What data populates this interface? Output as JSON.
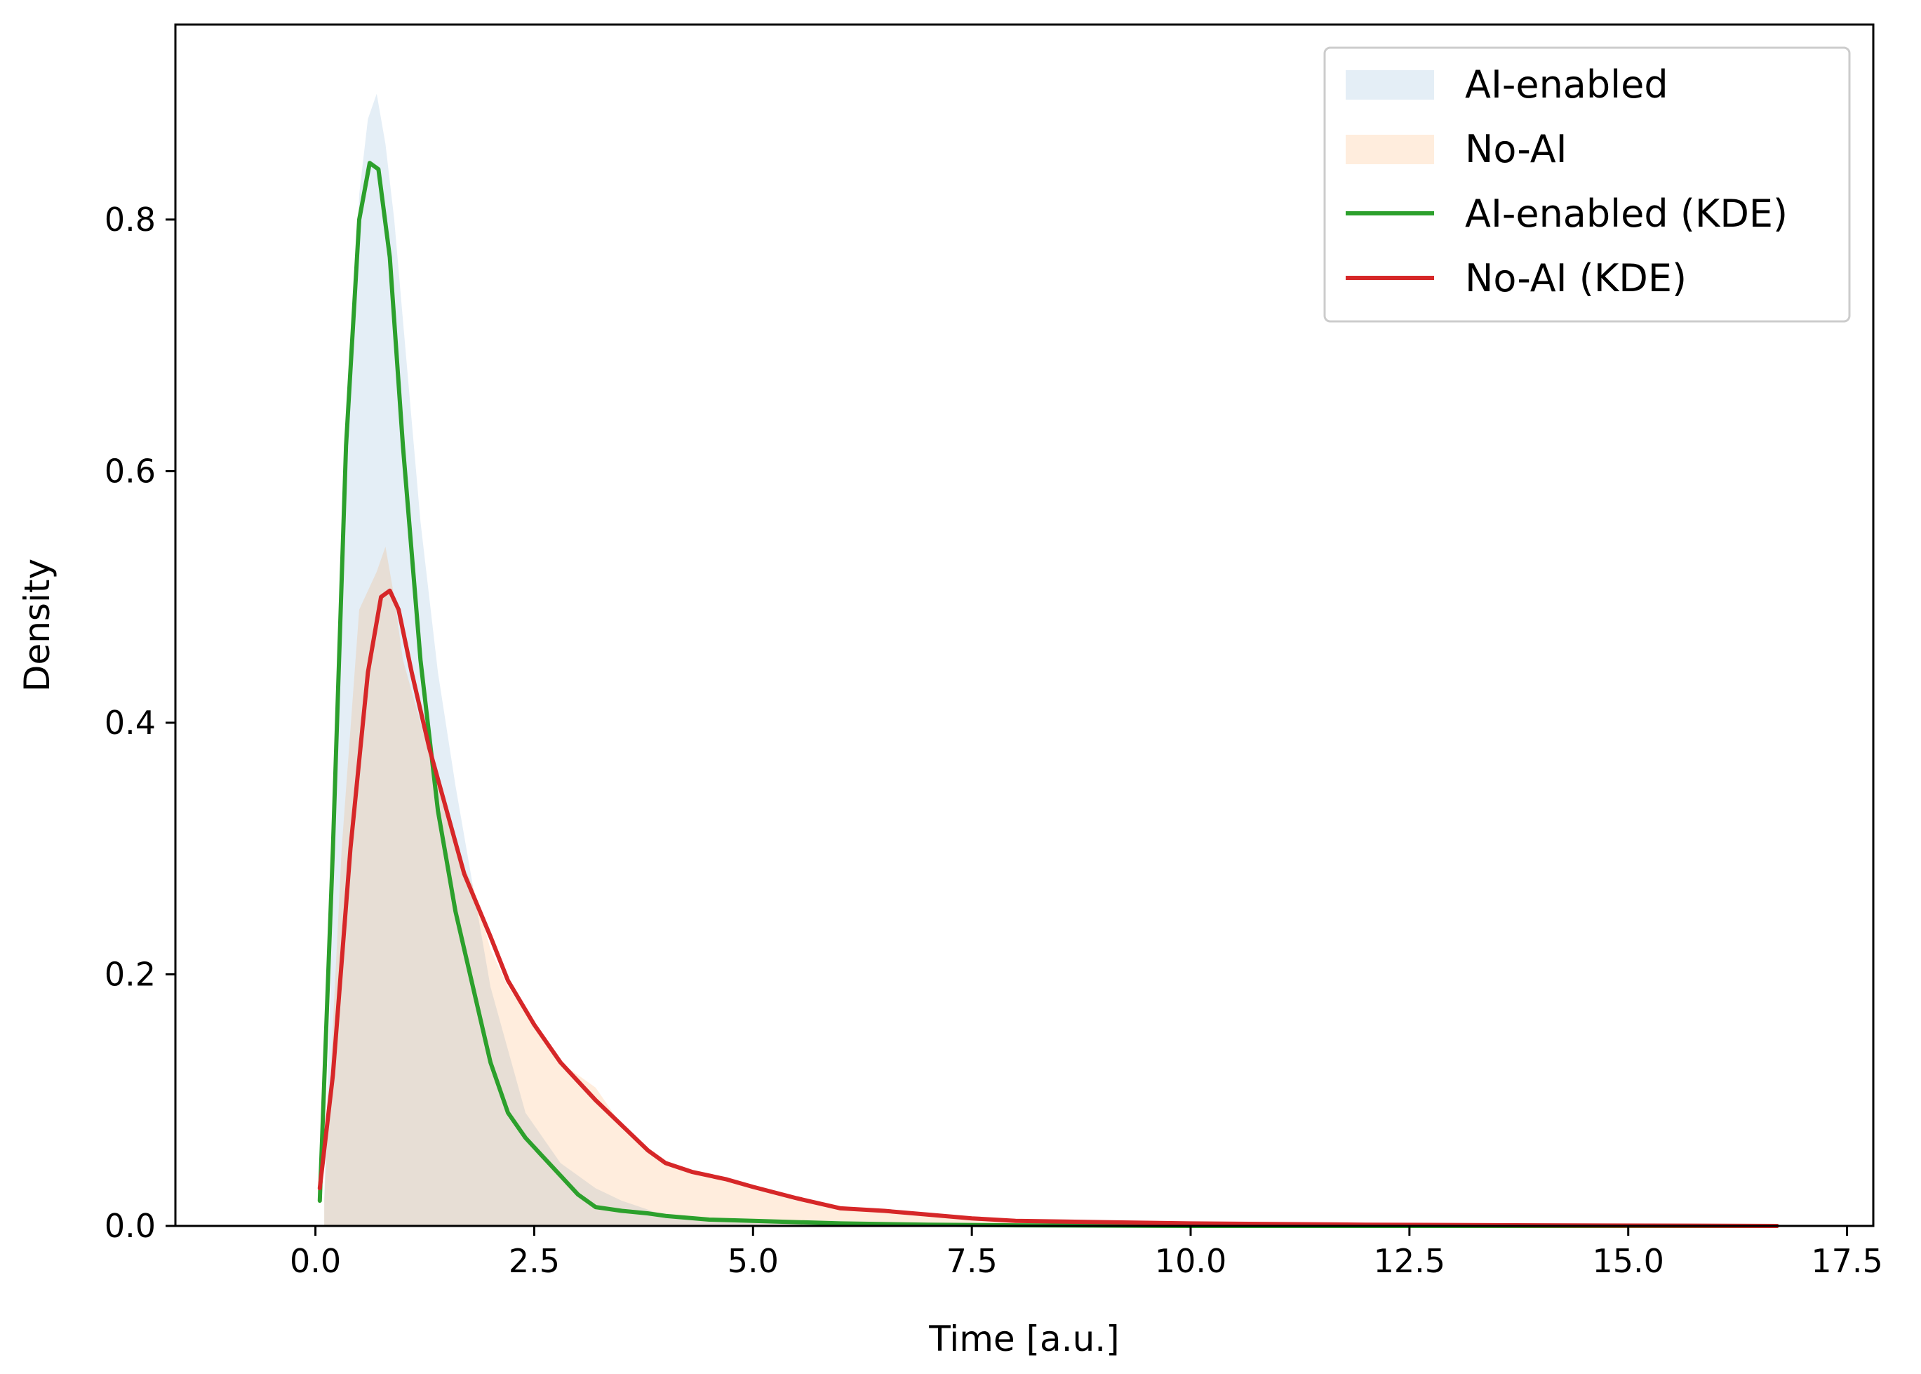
{
  "chart_data": {
    "type": "area",
    "title": "",
    "xlabel": "Time [a.u.]",
    "ylabel": "Density",
    "xlim": [
      -1.6,
      17.8
    ],
    "ylim": [
      0,
      0.955
    ],
    "xticks": [
      0.0,
      2.5,
      5.0,
      7.5,
      10.0,
      12.5,
      15.0,
      17.5
    ],
    "xtick_labels": [
      "0.0",
      "2.5",
      "5.0",
      "7.5",
      "10.0",
      "12.5",
      "15.0",
      "17.5"
    ],
    "yticks": [
      0.0,
      0.2,
      0.4,
      0.6,
      0.8
    ],
    "ytick_labels": [
      "0.0",
      "0.2",
      "0.4",
      "0.6",
      "0.8"
    ],
    "grid": false,
    "legend": "upper right",
    "series": [
      {
        "name": "AI-enabled",
        "kind": "histogram",
        "color": "#1f77b4",
        "opacity": 0.12,
        "x": [
          0.1,
          0.3,
          0.5,
          0.6,
          0.7,
          0.8,
          0.9,
          1.0,
          1.1,
          1.2,
          1.4,
          1.6,
          1.8,
          2.0,
          2.2,
          2.4,
          2.6,
          2.8,
          3.0,
          3.2,
          3.5,
          3.8,
          4.0,
          4.5,
          5.0,
          6.0,
          8.0
        ],
        "y": [
          0.02,
          0.5,
          0.82,
          0.88,
          0.9,
          0.86,
          0.8,
          0.72,
          0.64,
          0.56,
          0.44,
          0.35,
          0.27,
          0.19,
          0.14,
          0.09,
          0.07,
          0.05,
          0.04,
          0.03,
          0.02,
          0.013,
          0.008,
          0.005,
          0.003,
          0.001,
          0.0
        ]
      },
      {
        "name": "No-AI",
        "kind": "histogram",
        "color": "#ff7f0e",
        "opacity": 0.14,
        "x": [
          0.1,
          0.3,
          0.5,
          0.7,
          0.8,
          0.9,
          1.0,
          1.2,
          1.4,
          1.6,
          1.8,
          2.0,
          2.2,
          2.4,
          2.6,
          2.8,
          3.0,
          3.2,
          3.5,
          3.8,
          4.0,
          4.5,
          5.0,
          5.5,
          6.0,
          7.0,
          8.0,
          10.0
        ],
        "y": [
          0.02,
          0.3,
          0.49,
          0.52,
          0.54,
          0.5,
          0.45,
          0.4,
          0.35,
          0.3,
          0.27,
          0.22,
          0.19,
          0.17,
          0.15,
          0.13,
          0.12,
          0.11,
          0.08,
          0.06,
          0.05,
          0.04,
          0.03,
          0.02,
          0.015,
          0.008,
          0.004,
          0.0
        ]
      },
      {
        "name": "AI-enabled (KDE)",
        "kind": "line",
        "color": "#2ca02c",
        "x": [
          0.05,
          0.2,
          0.35,
          0.5,
          0.62,
          0.72,
          0.85,
          1.0,
          1.2,
          1.4,
          1.6,
          1.8,
          2.0,
          2.2,
          2.4,
          2.6,
          2.8,
          3.0,
          3.2,
          3.5,
          3.8,
          4.0,
          4.5,
          5.0,
          5.5,
          6.0,
          7.0,
          8.0,
          10.0,
          13.0,
          16.7
        ],
        "y": [
          0.02,
          0.3,
          0.62,
          0.8,
          0.845,
          0.84,
          0.77,
          0.62,
          0.45,
          0.33,
          0.25,
          0.19,
          0.13,
          0.09,
          0.07,
          0.055,
          0.04,
          0.025,
          0.015,
          0.012,
          0.01,
          0.008,
          0.005,
          0.004,
          0.003,
          0.002,
          0.001,
          0.0005,
          0.0,
          0.0,
          0.0
        ]
      },
      {
        "name": "No-AI (KDE)",
        "kind": "line",
        "color": "#d62728",
        "x": [
          0.05,
          0.2,
          0.4,
          0.6,
          0.75,
          0.85,
          0.95,
          1.1,
          1.3,
          1.5,
          1.7,
          2.0,
          2.2,
          2.5,
          2.8,
          3.0,
          3.2,
          3.5,
          3.8,
          4.0,
          4.3,
          4.7,
          5.0,
          5.5,
          6.0,
          6.5,
          7.0,
          7.5,
          8.0,
          9.0,
          10.0,
          12.0,
          14.0,
          16.7
        ],
        "y": [
          0.03,
          0.12,
          0.3,
          0.44,
          0.5,
          0.505,
          0.49,
          0.44,
          0.38,
          0.33,
          0.28,
          0.23,
          0.195,
          0.16,
          0.13,
          0.115,
          0.1,
          0.08,
          0.06,
          0.05,
          0.043,
          0.037,
          0.031,
          0.022,
          0.014,
          0.012,
          0.009,
          0.006,
          0.004,
          0.003,
          0.002,
          0.001,
          0.0005,
          0.0
        ]
      }
    ]
  }
}
